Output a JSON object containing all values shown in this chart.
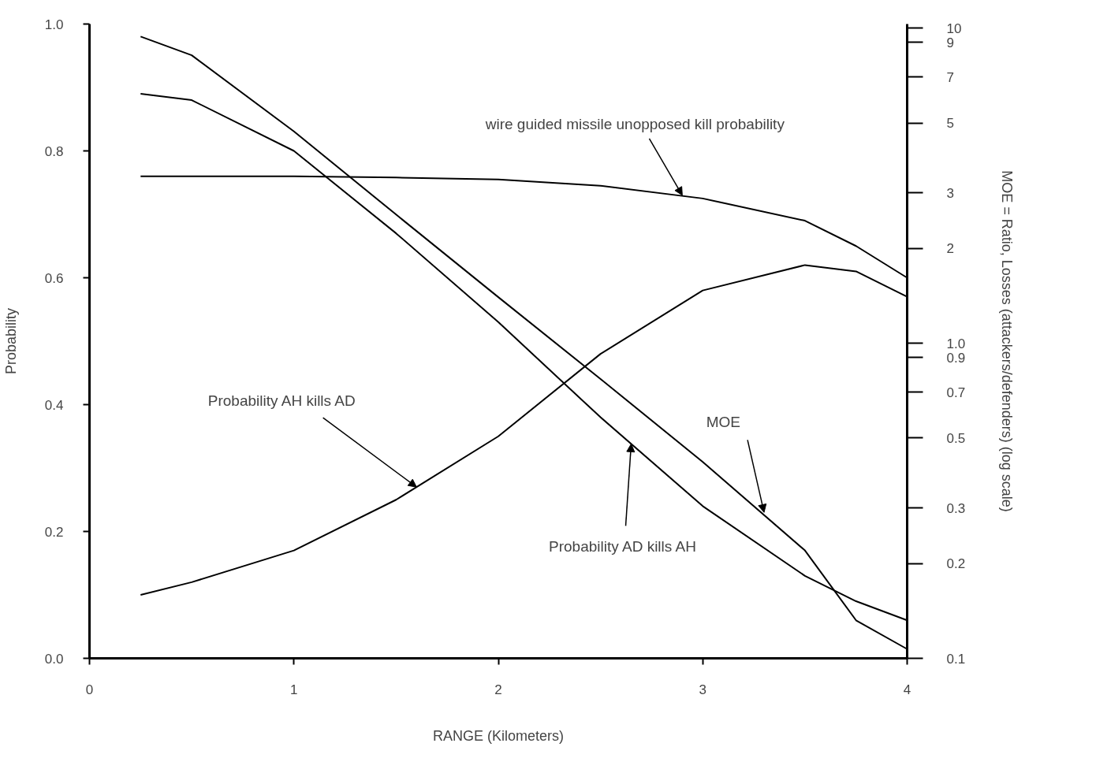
{
  "chart_data": {
    "type": "line",
    "xlabel": "RANGE (Kilometers)",
    "ylabel": "Probability",
    "y2label": "MOE = Ratio, Losses (attackers/defenders) (log scale)",
    "xlim": [
      0,
      4
    ],
    "xticks": [
      0,
      1,
      2,
      3,
      4
    ],
    "ylim": [
      0,
      1
    ],
    "yticks": [
      {
        "value": 0,
        "label": "0.0"
      },
      {
        "value": 0.2,
        "label": "0.2"
      },
      {
        "value": 0.4,
        "label": "0.4"
      },
      {
        "value": 0.6,
        "label": "0.6"
      },
      {
        "value": 0.8,
        "label": "0.8"
      },
      {
        "value": 1,
        "label": "1.0"
      }
    ],
    "y2lim": [
      0.1,
      10.3
    ],
    "y2ticks": [
      0.1,
      0.2,
      0.3,
      0.5,
      0.7,
      0.9,
      {
        "value": 1,
        "label": "1.0"
      },
      2,
      3,
      5,
      7,
      9,
      10
    ],
    "log": "y2",
    "grid": false,
    "marker": "none",
    "line_style": "solid",
    "x": [
      0.25,
      0.5,
      1,
      1.5,
      2,
      2.5,
      3,
      3.5,
      3.75,
      4
    ],
    "series": [
      {
        "color": "#000000",
        "values": [
          0.76,
          0.76,
          0.76,
          0.758,
          0.755,
          0.745,
          0.725,
          0.69,
          0.65,
          0.6
        ]
      },
      {
        "color": "#000000",
        "values": [
          0.1,
          0.12,
          0.17,
          0.25,
          0.35,
          0.48,
          0.58,
          0.62,
          0.61,
          0.57
        ]
      },
      {
        "color": "#000000",
        "values": [
          0.89,
          0.88,
          0.8,
          0.67,
          0.53,
          0.38,
          0.24,
          0.13,
          0.09,
          0.06
        ]
      },
      {
        "color": "#000000",
        "axis": "y2",
        "values": [
          9.4,
          8.2,
          4.7,
          2.56,
          1.4,
          0.77,
          0.42,
          0.22,
          0.132,
          0.107
        ]
      }
    ],
    "annotations": [
      {
        "text": "wire guided missile unopposed kill probability",
        "x": 2.9,
        "y": 0.73
      },
      {
        "text": "Probability AH kills AD",
        "x": 1.6,
        "y": 0.27
      },
      {
        "text": "Probability AD kills AH",
        "x": 2.65,
        "y": 0.338
      },
      {
        "text": "MOE",
        "x": 3.3,
        "y": 0.23
      }
    ]
  }
}
